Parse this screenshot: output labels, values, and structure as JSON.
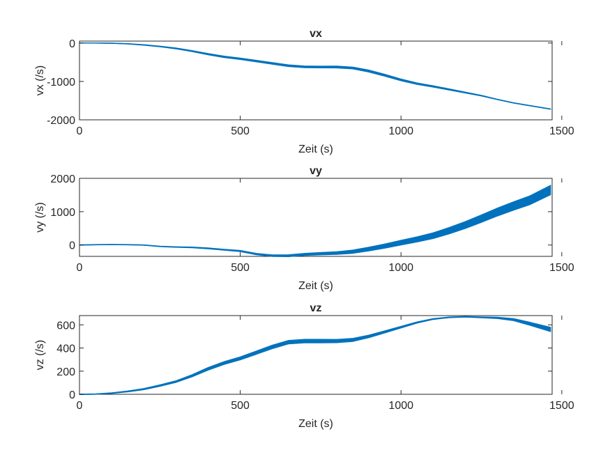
{
  "chart_data": [
    {
      "type": "line",
      "title": "vx",
      "xlabel": "Zeit (s)",
      "ylabel": "vx (/s)",
      "xlim": [
        0,
        1470
      ],
      "ylim": [
        -2000,
        50
      ],
      "xticks": [
        0,
        500,
        1000,
        1500
      ],
      "yticks": [
        -2000,
        -1000,
        0
      ],
      "grid": false,
      "series": [
        {
          "color": "#0072BD",
          "x": [
            0,
            50,
            100,
            150,
            200,
            250,
            300,
            350,
            400,
            450,
            500,
            550,
            600,
            650,
            700,
            750,
            800,
            850,
            900,
            950,
            1000,
            1050,
            1100,
            1150,
            1200,
            1250,
            1300,
            1350,
            1400,
            1465
          ],
          "y": [
            0,
            0,
            -5,
            -20,
            -50,
            -90,
            -140,
            -210,
            -290,
            -360,
            -410,
            -470,
            -530,
            -590,
            -620,
            -625,
            -625,
            -650,
            -730,
            -840,
            -960,
            -1060,
            -1130,
            -1210,
            -1290,
            -1370,
            -1470,
            -1560,
            -1630,
            -1720
          ],
          "band": [
            6,
            6,
            8,
            10,
            14,
            18,
            22,
            26,
            32,
            36,
            38,
            40,
            42,
            44,
            44,
            44,
            46,
            48,
            50,
            48,
            44,
            38,
            34,
            30,
            24,
            18,
            12,
            10,
            10,
            10
          ]
        }
      ]
    },
    {
      "type": "line",
      "title": "vy",
      "xlabel": "Zeit (s)",
      "ylabel": "vy (/s)",
      "xlim": [
        0,
        1470
      ],
      "ylim": [
        -340,
        2000
      ],
      "xticks": [
        0,
        500,
        1000,
        1500
      ],
      "yticks": [
        0,
        1000,
        2000
      ],
      "grid": false,
      "series": [
        {
          "color": "#0072BD",
          "x": [
            0,
            50,
            100,
            150,
            200,
            250,
            300,
            350,
            400,
            450,
            500,
            550,
            600,
            650,
            700,
            750,
            800,
            850,
            900,
            950,
            1000,
            1050,
            1100,
            1150,
            1200,
            1250,
            1300,
            1350,
            1400,
            1465
          ],
          "y": [
            0,
            10,
            15,
            10,
            0,
            -40,
            -60,
            -70,
            -100,
            -140,
            -180,
            -270,
            -320,
            -320,
            -280,
            -260,
            -240,
            -200,
            -120,
            -30,
            70,
            170,
            280,
            430,
            600,
            790,
            990,
            1170,
            1340,
            1650
          ],
          "band": [
            10,
            10,
            10,
            10,
            10,
            14,
            18,
            20,
            24,
            28,
            36,
            40,
            46,
            56,
            60,
            70,
            80,
            96,
            110,
            124,
            140,
            156,
            172,
            190,
            206,
            220,
            236,
            250,
            262,
            280
          ]
        }
      ]
    },
    {
      "type": "line",
      "title": "vz",
      "xlabel": "Zeit (s)",
      "ylabel": "vz (/s)",
      "xlim": [
        0,
        1470
      ],
      "ylim": [
        0,
        680
      ],
      "xticks": [
        0,
        500,
        1000,
        1500
      ],
      "yticks": [
        0,
        200,
        400,
        600
      ],
      "grid": false,
      "series": [
        {
          "color": "#0072BD",
          "x": [
            0,
            50,
            100,
            150,
            200,
            250,
            300,
            350,
            400,
            450,
            500,
            550,
            600,
            650,
            700,
            750,
            800,
            850,
            900,
            950,
            1000,
            1050,
            1100,
            1150,
            1200,
            1250,
            1300,
            1350,
            1400,
            1465
          ],
          "y": [
            0,
            2,
            10,
            25,
            45,
            75,
            110,
            160,
            220,
            270,
            310,
            360,
            410,
            450,
            460,
            460,
            460,
            470,
            500,
            540,
            580,
            620,
            650,
            665,
            670,
            665,
            660,
            645,
            610,
            560
          ],
          "band": [
            4,
            4,
            6,
            8,
            10,
            12,
            14,
            18,
            22,
            24,
            26,
            28,
            30,
            30,
            30,
            30,
            28,
            26,
            22,
            18,
            14,
            10,
            8,
            6,
            6,
            8,
            12,
            18,
            26,
            36
          ]
        }
      ]
    }
  ]
}
